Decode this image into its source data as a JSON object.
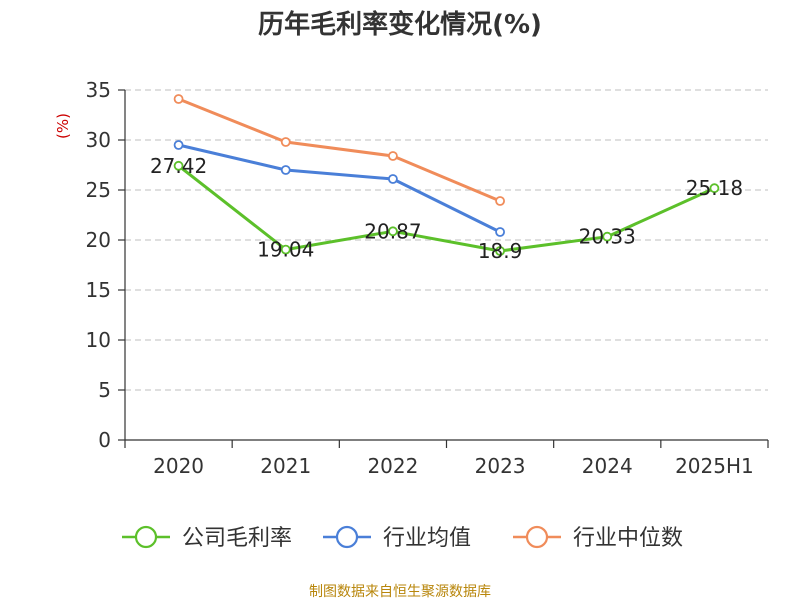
{
  "chart_data": {
    "type": "line",
    "title": "历年毛利率变化情况(%)",
    "ylabel": "(%)",
    "categories": [
      "2020",
      "2021",
      "2022",
      "2023",
      "2024",
      "2025H1"
    ],
    "ylim": [
      0,
      35
    ],
    "yticks": [
      0,
      5,
      10,
      15,
      20,
      25,
      30,
      35
    ],
    "grid": true,
    "legend_position": "bottom",
    "series": [
      {
        "name": "公司毛利率",
        "color": "#5cc02a",
        "values": [
          27.42,
          19.04,
          20.87,
          18.9,
          20.33,
          25.18
        ],
        "labels": [
          "27.42",
          "19.04",
          "20.87",
          "18.9",
          "20.33",
          "25.18"
        ]
      },
      {
        "name": "行业均值",
        "color": "#4a7fd8",
        "values": [
          29.5,
          27.0,
          26.1,
          20.8,
          null,
          null
        ]
      },
      {
        "name": "行业中位数",
        "color": "#f08c5a",
        "values": [
          34.1,
          29.8,
          28.4,
          23.9,
          null,
          null
        ]
      }
    ]
  },
  "source": "制图数据来自恒生聚源数据库"
}
